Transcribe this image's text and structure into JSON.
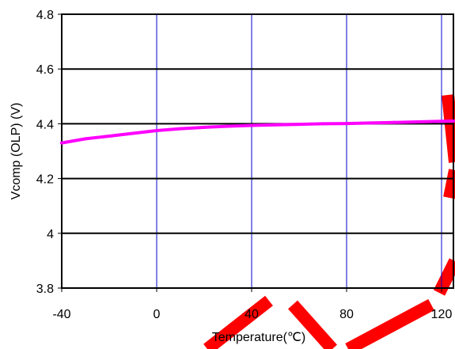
{
  "chart_data": {
    "type": "line",
    "title": "",
    "xlabel": "Temperature(℃)",
    "ylabel": "Vcomp (OLP) (V)",
    "xlim": [
      -40,
      125
    ],
    "ylim": [
      3.8,
      4.8
    ],
    "x_ticks": [
      -40,
      0,
      40,
      80,
      120
    ],
    "x_tick_labels": [
      "-40",
      "0",
      "40",
      "80",
      "120"
    ],
    "y_ticks": [
      3.8,
      4.0,
      4.2,
      4.4,
      4.6,
      4.8
    ],
    "y_tick_labels": [
      "3.8",
      "4",
      "4.2",
      "4.4",
      "4.6",
      "4.8"
    ],
    "grid": {
      "horizontal": true,
      "vertical": true
    },
    "colors": {
      "line": "#ff00ff",
      "vertical_grid": "#0000cc",
      "horizontal_grid": "#000000",
      "watermark": "#ff0000"
    },
    "series": [
      {
        "x": [
          -40,
          -30,
          -20,
          -10,
          0,
          10,
          20,
          30,
          40,
          50,
          60,
          70,
          80,
          90,
          100,
          110,
          120,
          125
        ],
        "y": [
          4.33,
          4.345,
          4.355,
          4.365,
          4.375,
          4.382,
          4.387,
          4.391,
          4.394,
          4.396,
          4.398,
          4.4,
          4.401,
          4.403,
          4.405,
          4.407,
          4.409,
          4.41
        ]
      }
    ]
  }
}
